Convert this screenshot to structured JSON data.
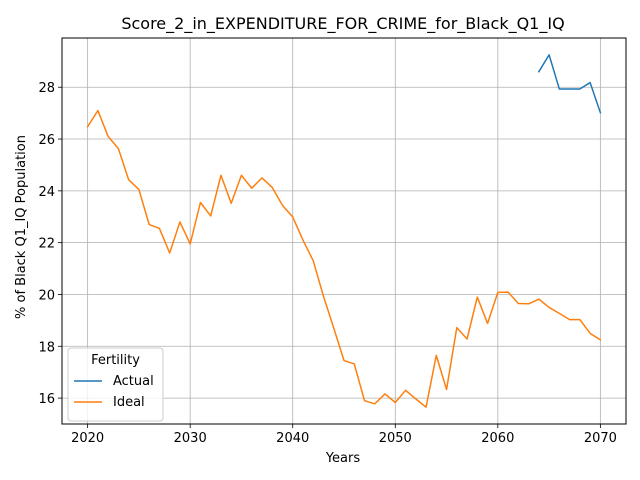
{
  "chart_data": {
    "type": "line",
    "title": "Score_2_in_EXPENDITURE_FOR_CRIME_for_Black_Q1_IQ",
    "xlabel": "Years",
    "ylabel": "% of Black Q1_IQ Population",
    "xlim": [
      2017.5,
      2072.5
    ],
    "ylim": [
      15.0,
      29.9
    ],
    "xticks": [
      2020,
      2030,
      2040,
      2050,
      2060,
      2070
    ],
    "yticks": [
      16,
      18,
      20,
      22,
      24,
      26,
      28
    ],
    "grid": true,
    "legend": {
      "title": "Fertility",
      "position": "lower-left"
    },
    "series": [
      {
        "name": "Actual",
        "color": "#1f77b4",
        "x": [
          2064,
          2065,
          2066,
          2067,
          2068,
          2069,
          2070
        ],
        "values": [
          28.6,
          29.25,
          27.93,
          27.93,
          27.93,
          28.18,
          27.02
        ]
      },
      {
        "name": "Ideal",
        "color": "#ff7f0e",
        "x": [
          2020,
          2021,
          2022,
          2023,
          2024,
          2025,
          2026,
          2027,
          2028,
          2029,
          2030,
          2031,
          2032,
          2033,
          2034,
          2035,
          2036,
          2037,
          2038,
          2039,
          2040,
          2041,
          2042,
          2043,
          2044,
          2045,
          2046,
          2047,
          2048,
          2049,
          2050,
          2051,
          2052,
          2053,
          2054,
          2055,
          2056,
          2057,
          2058,
          2059,
          2060,
          2061,
          2062,
          2063,
          2064,
          2065,
          2066,
          2067,
          2068,
          2069,
          2070
        ],
        "values": [
          26.48,
          27.1,
          26.1,
          25.63,
          24.43,
          24.05,
          22.7,
          22.55,
          21.6,
          22.8,
          21.95,
          23.55,
          23.03,
          24.6,
          23.52,
          24.6,
          24.1,
          24.5,
          24.13,
          23.44,
          22.99,
          22.1,
          21.3,
          19.93,
          18.7,
          17.45,
          17.32,
          15.9,
          15.78,
          16.16,
          15.83,
          16.3,
          15.97,
          15.65,
          17.65,
          16.33,
          18.72,
          18.28,
          19.9,
          18.88,
          20.08,
          20.09,
          19.65,
          19.64,
          19.82,
          19.5,
          19.27,
          19.03,
          19.03,
          18.5,
          18.25
        ]
      }
    ]
  }
}
